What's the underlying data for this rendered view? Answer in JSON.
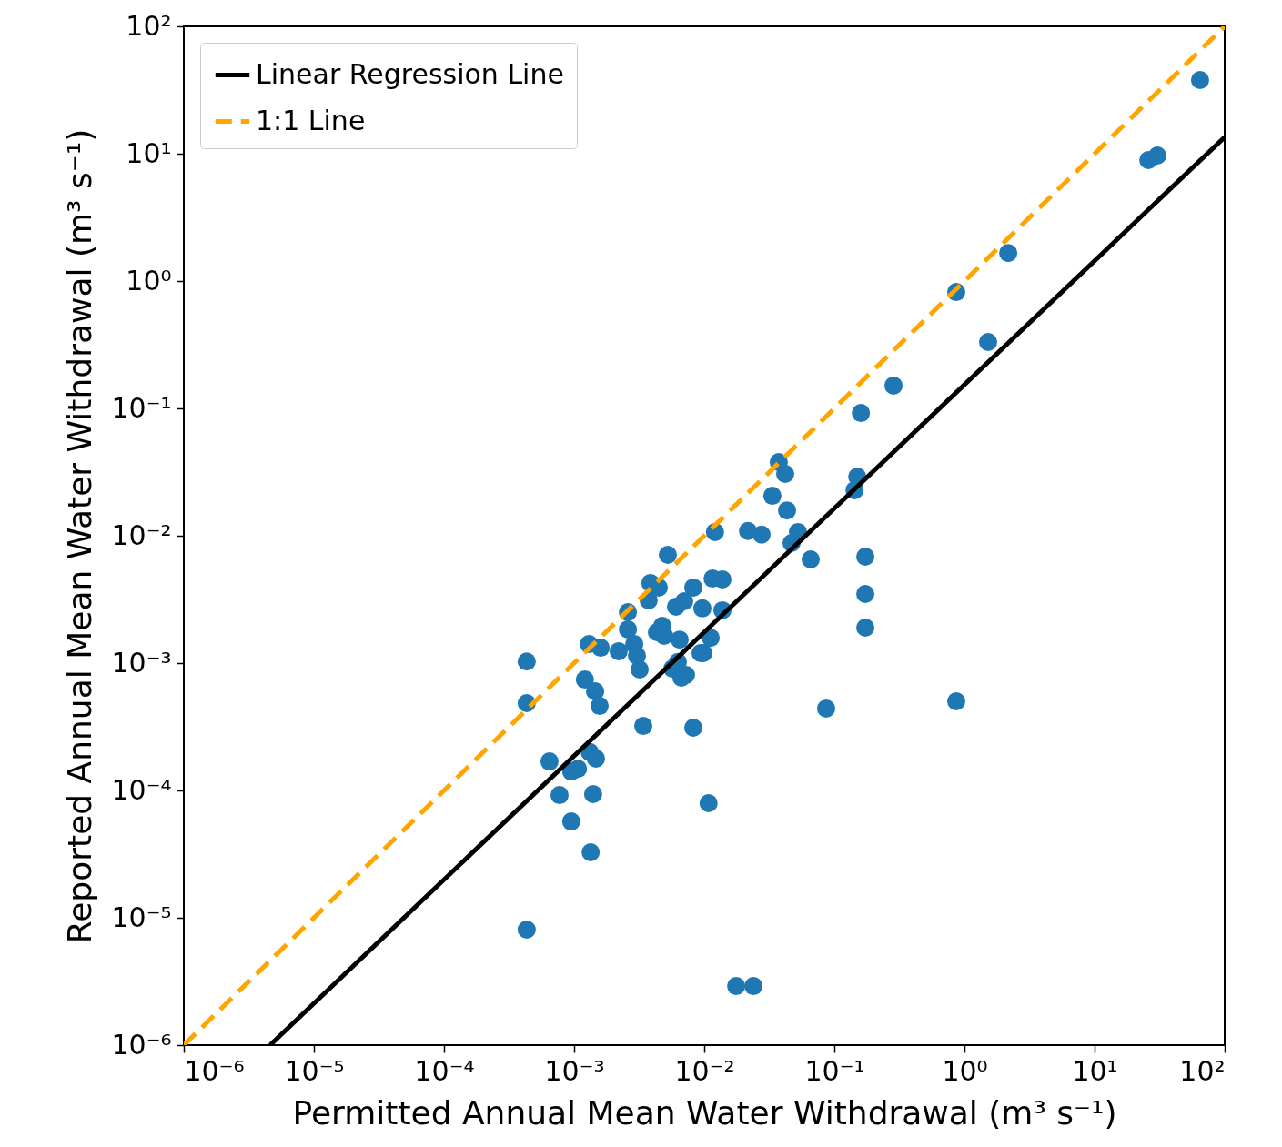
{
  "chart_data": {
    "type": "scatter",
    "xlabel": "Permitted Annual Mean Water Withdrawal (m³ s⁻¹)",
    "ylabel": "Reported Annual Mean Water Withdrawal (m³ s⁻¹)",
    "log": "xy",
    "grid": false,
    "legend": "top left",
    "xlim": [
      1e-06,
      100
    ],
    "ylim": [
      1e-06,
      100
    ],
    "xticks": [
      {
        "value": 1e-06,
        "label": "10⁻⁶"
      },
      {
        "value": 1e-05,
        "label": "10⁻⁵"
      },
      {
        "value": 0.0001,
        "label": "10⁻⁴"
      },
      {
        "value": 0.001,
        "label": "10⁻³"
      },
      {
        "value": 0.01,
        "label": "10⁻²"
      },
      {
        "value": 0.1,
        "label": "10⁻¹"
      },
      {
        "value": 1,
        "label": "10⁰"
      },
      {
        "value": 10,
        "label": "10¹"
      },
      {
        "value": 100,
        "label": "10²"
      }
    ],
    "yticks": [
      {
        "value": 1e-06,
        "label": "10⁻⁶"
      },
      {
        "value": 1e-05,
        "label": "10⁻⁵"
      },
      {
        "value": 0.0001,
        "label": "10⁻⁴"
      },
      {
        "value": 0.001,
        "label": "10⁻³"
      },
      {
        "value": 0.01,
        "label": "10⁻²"
      },
      {
        "value": 0.1,
        "label": "10⁻¹"
      },
      {
        "value": 1,
        "label": "10⁰"
      },
      {
        "value": 10,
        "label": "10¹"
      },
      {
        "value": 100,
        "label": "10²"
      }
    ],
    "series": [
      {
        "color": "#1f77b4",
        "marker": "circle",
        "x": [
          0.000432,
          0.000432,
          0.000432,
          0.000647,
          0.000773,
          0.00095,
          0.00107,
          0.00095,
          0.00121,
          0.0013,
          0.00132,
          0.00145,
          0.00147,
          0.0014,
          0.00134,
          0.00157,
          0.0016,
          0.0022,
          0.00259,
          0.00259,
          0.0029,
          0.00304,
          0.00319,
          0.0034,
          0.00374,
          0.00386,
          0.00433,
          0.00447,
          0.00476,
          0.00492,
          0.00525,
          0.00569,
          0.00607,
          0.00627,
          0.00647,
          0.00668,
          0.00702,
          0.00724,
          0.00824,
          0.00824,
          0.00938,
          0.00968,
          0.00984,
          0.0108,
          0.0112,
          0.0116,
          0.0121,
          0.0138,
          0.0138,
          0.0176,
          0.0217,
          0.0239,
          0.0276,
          0.0334,
          0.0374,
          0.0419,
          0.0433,
          0.0469,
          0.0525,
          0.0658,
          0.0865,
          0.143,
          0.15,
          0.16,
          0.173,
          0.173,
          0.173,
          0.285,
          0.865,
          0.865,
          1.52,
          2.17,
          25.9,
          30.4,
          64.7
        ],
        "values": [
          0.00103,
          0.000485,
          8.07e-06,
          0.000169,
          9.2e-05,
          0.000141,
          0.000148,
          5.71e-05,
          0.000743,
          0.00141,
          0.0002,
          0.000601,
          0.000178,
          9.36e-05,
          3.27e-05,
          0.000461,
          0.00132,
          0.00124,
          0.00251,
          0.00184,
          0.00141,
          0.00114,
          0.000891,
          0.000321,
          0.00311,
          0.00426,
          0.00175,
          0.00392,
          0.00196,
          0.00164,
          0.00708,
          0.000906,
          0.00277,
          0.00102,
          0.00153,
          0.000769,
          0.00306,
          0.000807,
          0.00392,
          0.000311,
          0.0012,
          0.00269,
          0.0012,
          7.94e-05,
          0.00158,
          0.00461,
          0.0107,
          0.00454,
          0.0026,
          2.91e-06,
          0.0109,
          2.91e-06,
          0.0102,
          0.0206,
          0.0379,
          0.0306,
          0.0158,
          0.00877,
          0.0107,
          0.00652,
          0.00044,
          0.0228,
          0.0291,
          0.092,
          0.00685,
          0.00349,
          0.0019,
          0.151,
          0.82,
          0.000501,
          0.332,
          1.66,
          8.91,
          9.68,
          37.9
        ]
      },
      {
        "type": "line",
        "name": "Linear Regression Line",
        "color": "#000000",
        "line_style": "solid",
        "x": [
          4.6e-06,
          100
        ],
        "values": [
          1e-06,
          13.5
        ]
      },
      {
        "type": "line",
        "name": "1:1 Line",
        "color": "#ffa500",
        "line_style": "dashed",
        "x": [
          1e-06,
          100
        ],
        "values": [
          1e-06,
          100
        ]
      }
    ]
  }
}
